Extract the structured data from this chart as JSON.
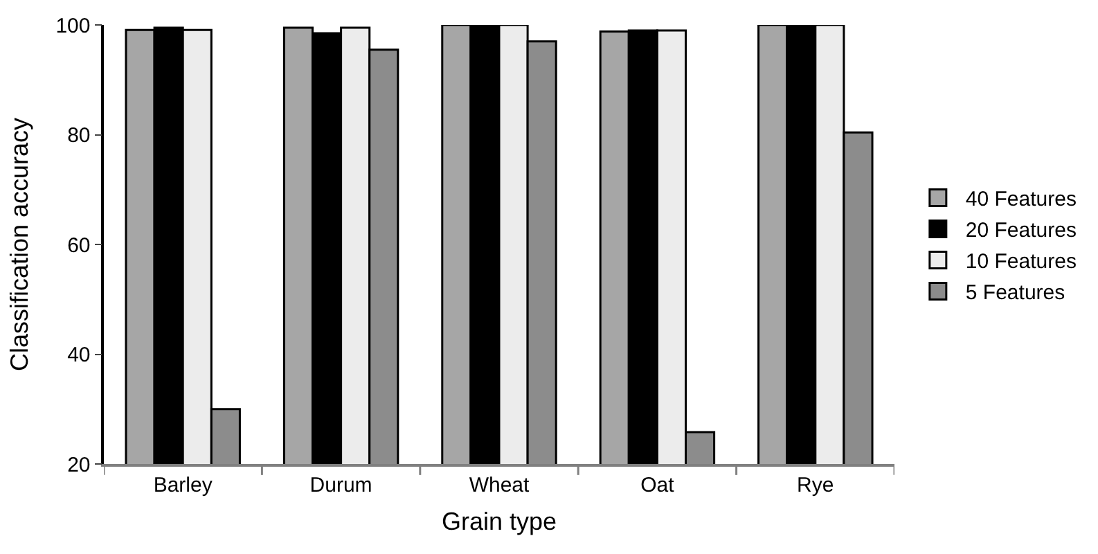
{
  "chart_data": {
    "type": "bar",
    "xlabel": "Grain type",
    "ylabel": "Classification accuracy",
    "categories": [
      "Barley",
      "Durum",
      "Wheat",
      "Oat",
      "Rye"
    ],
    "series": [
      {
        "name": "40 Features",
        "color": "#a6a6a6",
        "values": [
          99.1,
          99.5,
          100,
          98.8,
          100
        ]
      },
      {
        "name": "20 Features",
        "color": "#000000",
        "values": [
          99.5,
          98.5,
          100,
          99,
          100
        ]
      },
      {
        "name": "10 Features",
        "color": "#ececec",
        "values": [
          99.1,
          99.5,
          100,
          99,
          100
        ]
      },
      {
        "name": "5 Features",
        "color": "#8c8c8c",
        "values": [
          30,
          95.5,
          97,
          25.8,
          80.4
        ]
      }
    ],
    "ylim": [
      20,
      100
    ],
    "yticks": [
      20,
      40,
      60,
      80,
      100
    ],
    "legend": "right"
  }
}
